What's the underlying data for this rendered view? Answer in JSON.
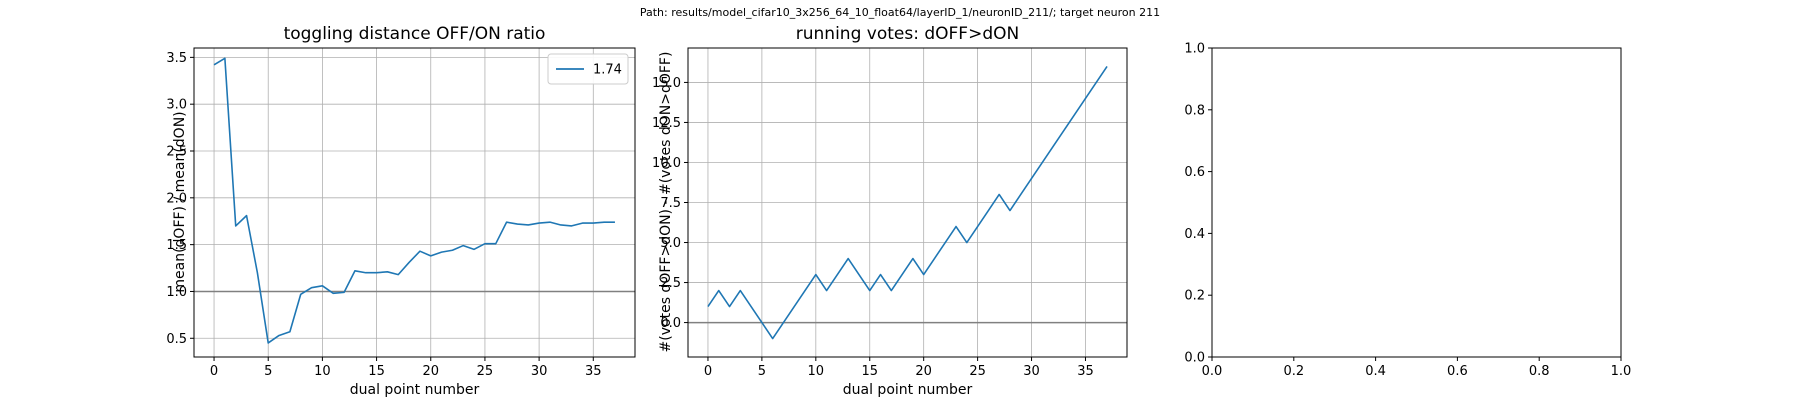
{
  "suptitle": "Path: results/model_cifar10_3x256_64_10_float64/layerID_1/neuronID_211/; target neuron 211",
  "chart_data": [
    {
      "type": "line",
      "title": "toggling distance OFF/ON ratio",
      "xlabel": "dual point number",
      "ylabel": "mean(dOFF) / mean(dON)",
      "xlim": [
        -1.85,
        38.85
      ],
      "ylim": [
        0.3,
        3.6
      ],
      "xticks": [
        "0",
        "5",
        "10",
        "15",
        "20",
        "25",
        "30",
        "35"
      ],
      "yticks": [
        "0.5",
        "1.0",
        "1.5",
        "2.0",
        "2.5",
        "3.0",
        "3.5"
      ],
      "grid": true,
      "legend_position": "top-right",
      "hline": 1.0,
      "series": [
        {
          "name": "1.74",
          "color": "#1f77b4",
          "x": [
            0,
            1,
            2,
            3,
            4,
            5,
            6,
            7,
            8,
            9,
            10,
            11,
            12,
            13,
            14,
            15,
            16,
            17,
            18,
            19,
            20,
            21,
            22,
            23,
            24,
            25,
            26,
            27,
            28,
            29,
            30,
            31,
            32,
            33,
            34,
            35,
            36,
            37
          ],
          "y": [
            3.42,
            3.49,
            1.7,
            1.81,
            1.2,
            0.45,
            0.53,
            0.57,
            0.97,
            1.04,
            1.06,
            0.98,
            0.99,
            1.22,
            1.2,
            1.2,
            1.21,
            1.18,
            1.31,
            1.43,
            1.38,
            1.42,
            1.44,
            1.49,
            1.45,
            1.51,
            1.51,
            1.74,
            1.72,
            1.71,
            1.73,
            1.74,
            1.71,
            1.7,
            1.73,
            1.73,
            1.74,
            1.74
          ]
        }
      ]
    },
    {
      "type": "line",
      "title": "running votes: dOFF>dON",
      "xlabel": "dual point number",
      "ylabel": "#(votes dOFF>dON) - #(votes dON>dOFF)",
      "xlim": [
        -1.85,
        38.85
      ],
      "ylim": [
        -2.15,
        17.15
      ],
      "xticks": [
        "0",
        "5",
        "10",
        "15",
        "20",
        "25",
        "30",
        "35"
      ],
      "yticks": [
        "0.0",
        "2.5",
        "5.0",
        "7.5",
        "10.0",
        "12.5",
        "15.0"
      ],
      "grid": true,
      "hline": 0,
      "series": [
        {
          "color": "#1f77b4",
          "x": [
            0,
            1,
            2,
            3,
            4,
            5,
            6,
            7,
            8,
            9,
            10,
            11,
            12,
            13,
            14,
            15,
            16,
            17,
            18,
            19,
            20,
            21,
            22,
            23,
            24,
            25,
            26,
            27,
            28,
            29,
            30,
            31,
            32,
            33,
            34,
            35,
            36,
            37
          ],
          "y": [
            1,
            2,
            1,
            2,
            1,
            0,
            -1,
            0,
            1,
            2,
            3,
            2,
            3,
            4,
            3,
            2,
            3,
            2,
            3,
            4,
            3,
            4,
            5,
            6,
            5,
            6,
            7,
            8,
            7,
            8,
            9,
            10,
            11,
            12,
            13,
            14,
            15,
            16
          ]
        }
      ]
    },
    {
      "type": "line",
      "title": "",
      "xlim": [
        0,
        1
      ],
      "ylim": [
        0,
        1
      ],
      "xticks": [
        "0.0",
        "0.2",
        "0.4",
        "0.6",
        "0.8",
        "1.0"
      ],
      "yticks": [
        "0.0",
        "0.2",
        "0.4",
        "0.6",
        "0.8",
        "1.0"
      ],
      "grid": false,
      "series": []
    }
  ]
}
